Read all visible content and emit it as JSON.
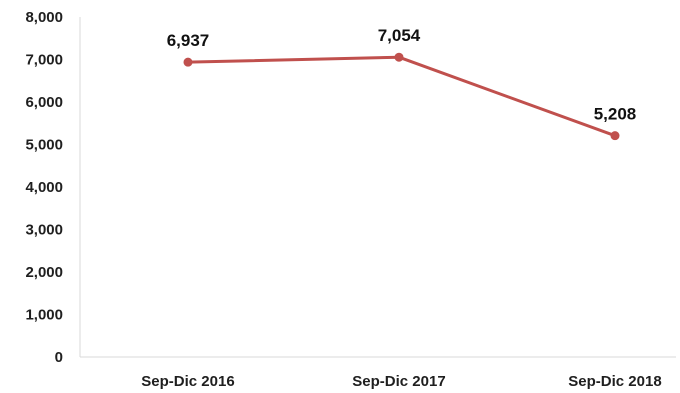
{
  "chart_data": {
    "type": "line",
    "title": "",
    "xlabel": "",
    "ylabel": "",
    "categories": [
      "Sep-Dic 2016",
      "Sep-Dic 2017",
      "Sep-Dic 2018"
    ],
    "series": [
      {
        "values": [
          6937,
          7054,
          5208
        ],
        "data_labels": [
          "6,937",
          "7,054",
          "5,208"
        ],
        "color": "#c0504d"
      }
    ],
    "ylim": [
      0,
      8000
    ],
    "y_ticks": [
      0,
      1000,
      2000,
      3000,
      4000,
      5000,
      6000,
      7000,
      8000
    ],
    "y_tick_labels": [
      "0",
      "1,000",
      "2,000",
      "3,000",
      "4,000",
      "5,000",
      "6,000",
      "7,000",
      "8,000"
    ],
    "grid": false,
    "legend": "none",
    "axis_color": "#d9d9d9"
  }
}
